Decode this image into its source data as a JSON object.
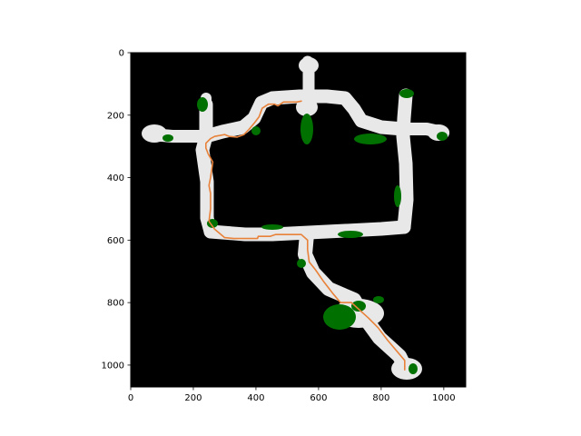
{
  "chart_data": {
    "type": "image",
    "title": "",
    "xlabel": "",
    "ylabel": "",
    "xlim": [
      0,
      1070
    ],
    "ylim": [
      1070,
      0
    ],
    "xticks": [
      0,
      200,
      400,
      600,
      800,
      1000
    ],
    "yticks": [
      0,
      200,
      400,
      600,
      800,
      1000
    ],
    "xtick_labels": [
      "0",
      "200",
      "400",
      "600",
      "800",
      "1000"
    ],
    "ytick_labels": [
      "0",
      "200",
      "400",
      "600",
      "800",
      "1000"
    ],
    "grid": false,
    "legend": "none",
    "layers": [
      {
        "name": "background",
        "color": "#000000"
      },
      {
        "name": "free-space",
        "color": "#e8e8e8"
      },
      {
        "name": "vegetation",
        "color": "#007000"
      },
      {
        "name": "planned-path",
        "color": "#e8823a"
      }
    ],
    "path": [
      [
        875,
        1015
      ],
      [
        875,
        985
      ],
      [
        820,
        920
      ],
      [
        790,
        880
      ],
      [
        760,
        850
      ],
      [
        705,
        800
      ],
      [
        670,
        800
      ],
      [
        645,
        770
      ],
      [
        618,
        735
      ],
      [
        590,
        695
      ],
      [
        570,
        670
      ],
      [
        565,
        630
      ],
      [
        565,
        600
      ],
      [
        545,
        582
      ],
      [
        510,
        582
      ],
      [
        462,
        582
      ],
      [
        445,
        588
      ],
      [
        407,
        588
      ],
      [
        405,
        595
      ],
      [
        330,
        595
      ],
      [
        300,
        592
      ],
      [
        268,
        565
      ],
      [
        250,
        540
      ],
      [
        255,
        500
      ],
      [
        255,
        450
      ],
      [
        250,
        425
      ],
      [
        255,
        400
      ],
      [
        262,
        350
      ],
      [
        248,
        325
      ],
      [
        240,
        305
      ],
      [
        240,
        290
      ],
      [
        255,
        275
      ],
      [
        268,
        268
      ],
      [
        300,
        262
      ],
      [
        315,
        268
      ],
      [
        340,
        270
      ],
      [
        362,
        262
      ],
      [
        378,
        245
      ],
      [
        395,
        225
      ],
      [
        410,
        205
      ],
      [
        420,
        178
      ],
      [
        440,
        165
      ],
      [
        460,
        165
      ],
      [
        470,
        170
      ],
      [
        488,
        158
      ],
      [
        510,
        158
      ],
      [
        530,
        158
      ],
      [
        545,
        155
      ]
    ]
  }
}
